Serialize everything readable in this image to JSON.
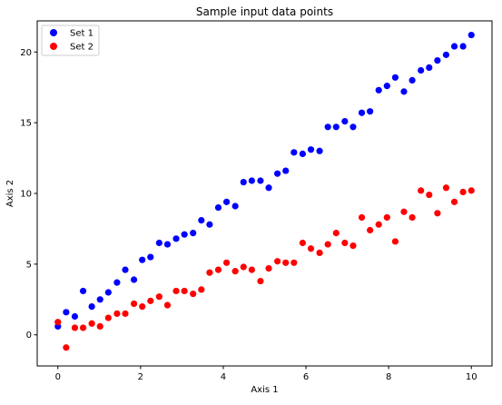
{
  "chart_data": {
    "type": "scatter",
    "title": "Sample input data points",
    "xlabel": "Axis 1",
    "ylabel": "Axis 2",
    "xlim": [
      -0.5,
      10.5
    ],
    "ylim": [
      -2.2,
      22.2
    ],
    "xticks": [
      0,
      2,
      4,
      6,
      8,
      10
    ],
    "yticks": [
      0,
      5,
      10,
      15,
      20
    ],
    "grid": false,
    "legend_position": "upper-left",
    "x": [
      0.0,
      0.2,
      0.41,
      0.61,
      0.82,
      1.02,
      1.22,
      1.43,
      1.63,
      1.84,
      2.04,
      2.24,
      2.45,
      2.65,
      2.86,
      3.06,
      3.27,
      3.47,
      3.67,
      3.88,
      4.08,
      4.29,
      4.49,
      4.69,
      4.9,
      5.1,
      5.31,
      5.51,
      5.71,
      5.92,
      6.12,
      6.33,
      6.53,
      6.73,
      6.94,
      7.14,
      7.35,
      7.55,
      7.76,
      7.96,
      8.16,
      8.37,
      8.57,
      8.78,
      8.98,
      9.18,
      9.39,
      9.59,
      9.8,
      10.0
    ],
    "series": [
      {
        "name": "Set 1",
        "color": "#0000ff",
        "values": [
          0.6,
          1.6,
          1.3,
          3.1,
          2.0,
          2.5,
          3.0,
          3.7,
          4.6,
          3.9,
          5.3,
          5.5,
          6.5,
          6.4,
          6.8,
          7.1,
          7.2,
          8.1,
          7.8,
          9.0,
          9.4,
          9.1,
          10.8,
          10.9,
          10.9,
          10.4,
          11.4,
          11.6,
          12.9,
          12.8,
          13.1,
          13.0,
          14.7,
          14.7,
          15.1,
          14.7,
          15.7,
          15.8,
          17.3,
          17.6,
          18.2,
          17.2,
          18.0,
          18.7,
          18.9,
          19.4,
          19.8,
          20.4,
          20.4,
          21.2
        ]
      },
      {
        "name": "Set 2",
        "color": "#ff0000",
        "values": [
          0.9,
          -0.9,
          0.5,
          0.5,
          0.8,
          0.6,
          1.2,
          1.5,
          1.5,
          2.2,
          2.0,
          2.4,
          2.7,
          2.1,
          3.1,
          3.1,
          2.9,
          3.2,
          4.4,
          4.6,
          5.1,
          4.5,
          4.8,
          4.6,
          3.8,
          4.7,
          5.2,
          5.1,
          5.1,
          6.5,
          6.1,
          5.8,
          6.4,
          7.2,
          6.5,
          6.3,
          8.3,
          7.4,
          7.8,
          8.3,
          6.6,
          8.7,
          8.3,
          10.2,
          9.9,
          8.6,
          10.4,
          9.4,
          10.1,
          10.2
        ]
      }
    ]
  }
}
